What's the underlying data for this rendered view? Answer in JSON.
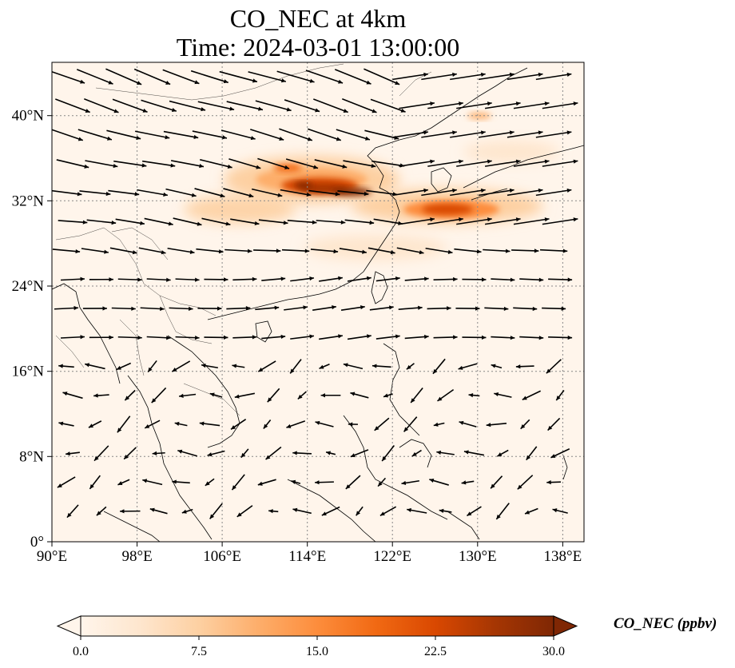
{
  "title": {
    "line1": "CO_NEC at 4km",
    "line2": "Time: 2024-03-01 13:00:00"
  },
  "map": {
    "lon_range": [
      90,
      140
    ],
    "lat_range": [
      0,
      45
    ],
    "lon_ticks": [
      "90°E",
      "98°E",
      "106°E",
      "114°E",
      "122°E",
      "130°E",
      "138°E"
    ],
    "lat_ticks": [
      "0°",
      "8°N",
      "16°N",
      "24°N",
      "32°N",
      "40°N"
    ],
    "lon_tick_values": [
      90,
      98,
      106,
      114,
      122,
      130,
      138
    ],
    "lat_tick_values": [
      0,
      8,
      16,
      24,
      32,
      40
    ],
    "gridlines": true,
    "field": "CO_NEC",
    "wind_vectors": true
  },
  "colorbar": {
    "label": "CO_NEC (ppbv)",
    "min": 0.0,
    "max": 30.0,
    "ticks": [
      "0.0",
      "7.5",
      "15.0",
      "22.5",
      "30.0"
    ],
    "extend": "both",
    "colormap": [
      "#fff5eb",
      "#fee6ce",
      "#fdd0a2",
      "#fdae6b",
      "#fd8d3c",
      "#f16913",
      "#d94801",
      "#a63603",
      "#7f2704"
    ]
  },
  "colors": {
    "background_field": "#fff5eb",
    "coast": "#000000",
    "grid": "#888888",
    "arrow": "#000000"
  }
}
